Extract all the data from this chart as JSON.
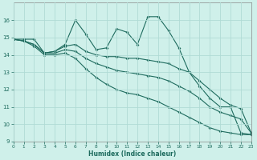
{
  "xlabel": "Humidex (Indice chaleur)",
  "xlim": [
    0,
    23
  ],
  "ylim": [
    9,
    17
  ],
  "yticks": [
    9,
    10,
    11,
    12,
    13,
    14,
    15,
    16
  ],
  "xticks": [
    0,
    1,
    2,
    3,
    4,
    5,
    6,
    7,
    8,
    9,
    10,
    11,
    12,
    13,
    14,
    15,
    16,
    17,
    18,
    19,
    20,
    21,
    22,
    23
  ],
  "bg_color": "#cff0ea",
  "grid_color": "#b0dbd5",
  "line_color": "#1e6b5e",
  "series": [
    [
      14.9,
      14.9,
      14.9,
      14.1,
      14.2,
      14.6,
      16.0,
      15.2,
      14.3,
      14.4,
      15.5,
      15.3,
      14.6,
      16.2,
      16.2,
      15.4,
      14.4,
      13.0,
      12.2,
      11.5,
      11.0,
      11.0,
      9.5,
      9.4
    ],
    [
      14.9,
      14.8,
      14.6,
      14.1,
      14.2,
      14.5,
      14.6,
      14.2,
      14.0,
      13.9,
      13.9,
      13.8,
      13.8,
      13.7,
      13.6,
      13.5,
      13.2,
      13.0,
      12.5,
      12.0,
      11.5,
      11.1,
      10.9,
      9.5
    ],
    [
      14.9,
      14.8,
      14.6,
      14.1,
      14.1,
      14.3,
      14.2,
      13.8,
      13.5,
      13.3,
      13.1,
      13.0,
      12.9,
      12.8,
      12.7,
      12.5,
      12.2,
      11.9,
      11.5,
      11.0,
      10.7,
      10.5,
      10.3,
      9.5
    ],
    [
      14.9,
      14.8,
      14.5,
      14.0,
      14.0,
      14.1,
      13.8,
      13.2,
      12.7,
      12.3,
      12.0,
      11.8,
      11.7,
      11.5,
      11.3,
      11.0,
      10.7,
      10.4,
      10.1,
      9.8,
      9.6,
      9.5,
      9.4,
      9.4
    ]
  ]
}
